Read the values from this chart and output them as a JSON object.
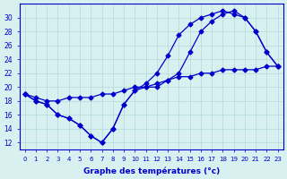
{
  "xlabel": "Graphe des températures (°c)",
  "ylabel": "",
  "x_ticks": [
    0,
    1,
    2,
    3,
    4,
    5,
    6,
    7,
    8,
    9,
    10,
    11,
    12,
    13,
    14,
    15,
    16,
    17,
    18,
    19,
    20,
    21,
    22,
    23
  ],
  "ylim": [
    11,
    32
  ],
  "xlim": [
    -0.5,
    23.5
  ],
  "yticks": [
    12,
    14,
    16,
    18,
    20,
    22,
    24,
    26,
    28,
    30
  ],
  "bg_color": "#d8f0f0",
  "line_color": "#0000cc",
  "grid_color": "#b0d8d8",
  "line1": {
    "x": [
      0,
      1,
      2,
      3,
      4,
      5,
      6,
      7,
      8,
      9,
      10,
      11,
      12,
      13,
      14,
      15,
      16,
      17,
      18,
      19,
      20,
      21,
      22,
      23
    ],
    "y": [
      19,
      18,
      17.5,
      16,
      15.5,
      14.5,
      13,
      12,
      14,
      17.5,
      19.5,
      20,
      20,
      21,
      22,
      25,
      28,
      29.5,
      30.5,
      31,
      30,
      28,
      25,
      23
    ]
  },
  "line2": {
    "x": [
      0,
      1,
      2,
      3,
      4,
      5,
      6,
      7,
      8,
      9,
      10,
      11,
      12,
      13,
      14,
      15,
      16,
      17,
      18,
      19,
      20,
      21,
      22,
      23
    ],
    "y": [
      19,
      18,
      17.5,
      16,
      15.5,
      14.5,
      13,
      12,
      14,
      17.5,
      19.5,
      20.5,
      22,
      24.5,
      27.5,
      29,
      30,
      30.5,
      31,
      30.5,
      30,
      28,
      25,
      23
    ]
  },
  "line3": {
    "x": [
      0,
      1,
      2,
      3,
      4,
      5,
      6,
      7,
      8,
      9,
      10,
      11,
      12,
      13,
      14,
      15,
      16,
      17,
      18,
      19,
      20,
      21,
      22,
      23
    ],
    "y": [
      19,
      18.5,
      18,
      18,
      18.5,
      18.5,
      18.5,
      19,
      19,
      19.5,
      20,
      20,
      20.5,
      21,
      21.5,
      21.5,
      22,
      22,
      22.5,
      22.5,
      22.5,
      22.5,
      23,
      23
    ]
  }
}
